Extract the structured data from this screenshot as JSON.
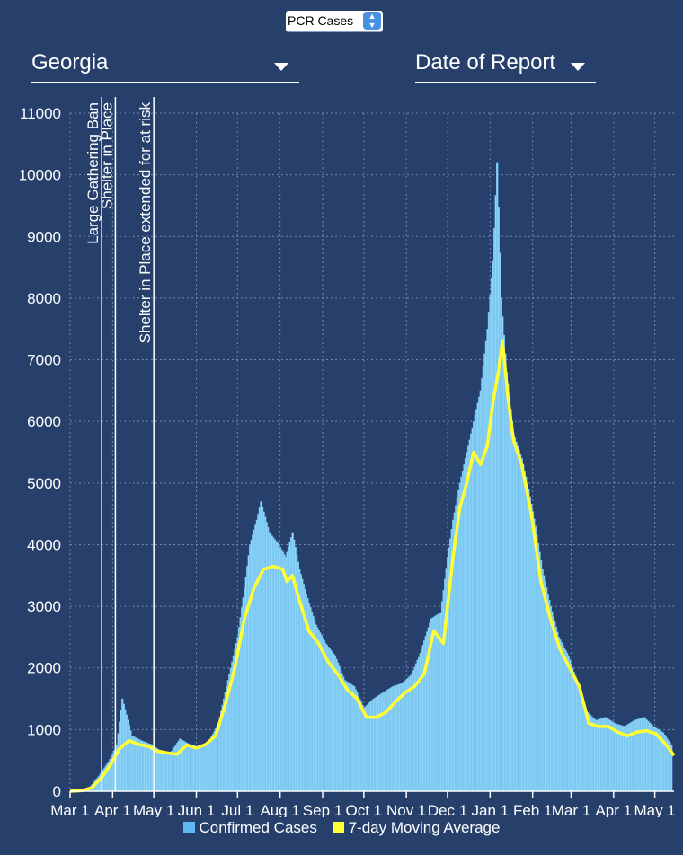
{
  "controls": {
    "metric_select": {
      "value": "PCR Cases"
    },
    "state_dropdown": {
      "value": "Georgia"
    },
    "date_dropdown": {
      "value": "Date of Report"
    }
  },
  "colors": {
    "background": "#27406b",
    "bars": "#8fd3f5",
    "bars_edge": "#5fb8ee",
    "moving_average": "#ffff33",
    "grid": "#6f86b0"
  },
  "chart_data": {
    "type": "bar",
    "title": "",
    "xlabel": "",
    "ylabel": "",
    "ylim": [
      0,
      11000
    ],
    "yticks": [
      0,
      1000,
      2000,
      3000,
      4000,
      5000,
      6000,
      7000,
      8000,
      9000,
      10000,
      11000
    ],
    "xlim": [
      "2020-03-01",
      "2021-05-15"
    ],
    "xticks": [
      {
        "date": "2020-03-01",
        "label": "Mar 1"
      },
      {
        "date": "2020-04-01",
        "label": "Apr 1"
      },
      {
        "date": "2020-05-01",
        "label": "May 1"
      },
      {
        "date": "2020-06-01",
        "label": "Jun 1"
      },
      {
        "date": "2020-07-01",
        "label": "Jul 1"
      },
      {
        "date": "2020-08-01",
        "label": "Aug 1"
      },
      {
        "date": "2020-09-01",
        "label": "Sep 1"
      },
      {
        "date": "2020-10-01",
        "label": "Oct 1"
      },
      {
        "date": "2020-11-01",
        "label": "Nov 1"
      },
      {
        "date": "2020-12-01",
        "label": "Dec 1"
      },
      {
        "date": "2021-01-01",
        "label": "Jan 1"
      },
      {
        "date": "2021-02-01",
        "label": "Feb 1"
      },
      {
        "date": "2021-03-01",
        "label": "Mar 1"
      },
      {
        "date": "2021-04-01",
        "label": "Apr 1"
      },
      {
        "date": "2021-05-01",
        "label": "May 1"
      }
    ],
    "grid": true,
    "legend_position": "bottom",
    "annotations": [
      {
        "date": "2020-03-24",
        "label": "Large Gathering Ban"
      },
      {
        "date": "2020-04-03",
        "label": "Shelter in Place"
      },
      {
        "date": "2020-05-01",
        "label": "Shelter in Place extended for at risk"
      }
    ],
    "series": [
      {
        "name": "Confirmed Cases",
        "kind": "bar",
        "points": [
          [
            "2020-03-01",
            0
          ],
          [
            "2020-03-08",
            10
          ],
          [
            "2020-03-15",
            60
          ],
          [
            "2020-03-22",
            250
          ],
          [
            "2020-03-29",
            480
          ],
          [
            "2020-04-04",
            750
          ],
          [
            "2020-04-08",
            1500
          ],
          [
            "2020-04-15",
            900
          ],
          [
            "2020-04-22",
            820
          ],
          [
            "2020-04-29",
            760
          ],
          [
            "2020-05-06",
            650
          ],
          [
            "2020-05-13",
            620
          ],
          [
            "2020-05-20",
            850
          ],
          [
            "2020-05-27",
            760
          ],
          [
            "2020-06-03",
            720
          ],
          [
            "2020-06-10",
            800
          ],
          [
            "2020-06-17",
            1100
          ],
          [
            "2020-06-24",
            1800
          ],
          [
            "2020-07-01",
            2500
          ],
          [
            "2020-07-06",
            3300
          ],
          [
            "2020-07-10",
            4000
          ],
          [
            "2020-07-15",
            4400
          ],
          [
            "2020-07-18",
            4700
          ],
          [
            "2020-07-24",
            4200
          ],
          [
            "2020-07-31",
            4000
          ],
          [
            "2020-08-05",
            3800
          ],
          [
            "2020-08-10",
            4200
          ],
          [
            "2020-08-15",
            3600
          ],
          [
            "2020-08-20",
            3200
          ],
          [
            "2020-08-27",
            2700
          ],
          [
            "2020-09-03",
            2400
          ],
          [
            "2020-09-10",
            2200
          ],
          [
            "2020-09-17",
            1800
          ],
          [
            "2020-09-24",
            1700
          ],
          [
            "2020-10-01",
            1350
          ],
          [
            "2020-10-08",
            1500
          ],
          [
            "2020-10-15",
            1600
          ],
          [
            "2020-10-22",
            1700
          ],
          [
            "2020-10-29",
            1750
          ],
          [
            "2020-11-05",
            1900
          ],
          [
            "2020-11-12",
            2300
          ],
          [
            "2020-11-19",
            2800
          ],
          [
            "2020-11-26",
            2900
          ],
          [
            "2020-12-01",
            3800
          ],
          [
            "2020-12-05",
            4400
          ],
          [
            "2020-12-10",
            5000
          ],
          [
            "2020-12-15",
            5500
          ],
          [
            "2020-12-20",
            6000
          ],
          [
            "2020-12-25",
            6500
          ],
          [
            "2020-12-30",
            7500
          ],
          [
            "2021-01-03",
            8600
          ],
          [
            "2021-01-06",
            10200
          ],
          [
            "2021-01-09",
            8000
          ],
          [
            "2021-01-13",
            6800
          ],
          [
            "2021-01-18",
            5800
          ],
          [
            "2021-01-24",
            5400
          ],
          [
            "2021-01-29",
            4900
          ],
          [
            "2021-02-03",
            4300
          ],
          [
            "2021-02-08",
            3600
          ],
          [
            "2021-02-14",
            3000
          ],
          [
            "2021-02-20",
            2500
          ],
          [
            "2021-02-27",
            2200
          ],
          [
            "2021-03-05",
            1800
          ],
          [
            "2021-03-12",
            1300
          ],
          [
            "2021-03-19",
            1150
          ],
          [
            "2021-03-26",
            1200
          ],
          [
            "2021-04-02",
            1100
          ],
          [
            "2021-04-09",
            1050
          ],
          [
            "2021-04-16",
            1150
          ],
          [
            "2021-04-23",
            1200
          ],
          [
            "2021-04-30",
            1050
          ],
          [
            "2021-05-07",
            950
          ],
          [
            "2021-05-13",
            750
          ]
        ]
      },
      {
        "name": "7-day Moving Average",
        "kind": "line",
        "points": [
          [
            "2020-03-01",
            0
          ],
          [
            "2020-03-10",
            10
          ],
          [
            "2020-03-17",
            60
          ],
          [
            "2020-03-24",
            220
          ],
          [
            "2020-03-31",
            450
          ],
          [
            "2020-04-06",
            690
          ],
          [
            "2020-04-13",
            820
          ],
          [
            "2020-04-20",
            760
          ],
          [
            "2020-04-27",
            730
          ],
          [
            "2020-05-04",
            650
          ],
          [
            "2020-05-11",
            620
          ],
          [
            "2020-05-18",
            600
          ],
          [
            "2020-05-25",
            750
          ],
          [
            "2020-06-01",
            700
          ],
          [
            "2020-06-08",
            760
          ],
          [
            "2020-06-15",
            900
          ],
          [
            "2020-06-22",
            1400
          ],
          [
            "2020-06-29",
            2000
          ],
          [
            "2020-07-06",
            2800
          ],
          [
            "2020-07-13",
            3300
          ],
          [
            "2020-07-20",
            3600
          ],
          [
            "2020-07-27",
            3650
          ],
          [
            "2020-08-03",
            3600
          ],
          [
            "2020-08-06",
            3400
          ],
          [
            "2020-08-10",
            3500
          ],
          [
            "2020-08-15",
            3100
          ],
          [
            "2020-08-22",
            2600
          ],
          [
            "2020-08-29",
            2400
          ],
          [
            "2020-09-05",
            2100
          ],
          [
            "2020-09-12",
            1900
          ],
          [
            "2020-09-19",
            1650
          ],
          [
            "2020-09-26",
            1500
          ],
          [
            "2020-10-03",
            1200
          ],
          [
            "2020-10-10",
            1200
          ],
          [
            "2020-10-17",
            1280
          ],
          [
            "2020-10-24",
            1450
          ],
          [
            "2020-10-31",
            1600
          ],
          [
            "2020-11-07",
            1700
          ],
          [
            "2020-11-14",
            1900
          ],
          [
            "2020-11-21",
            2600
          ],
          [
            "2020-11-28",
            2400
          ],
          [
            "2020-12-01",
            3000
          ],
          [
            "2020-12-05",
            3800
          ],
          [
            "2020-12-10",
            4600
          ],
          [
            "2020-12-15",
            5000
          ],
          [
            "2020-12-20",
            5500
          ],
          [
            "2020-12-25",
            5300
          ],
          [
            "2020-12-30",
            5600
          ],
          [
            "2021-01-03",
            6300
          ],
          [
            "2021-01-07",
            6800
          ],
          [
            "2021-01-10",
            7300
          ],
          [
            "2021-01-14",
            6400
          ],
          [
            "2021-01-18",
            5700
          ],
          [
            "2021-01-24",
            5300
          ],
          [
            "2021-01-31",
            4500
          ],
          [
            "2021-02-07",
            3400
          ],
          [
            "2021-02-14",
            2800
          ],
          [
            "2021-02-21",
            2300
          ],
          [
            "2021-02-28",
            2000
          ],
          [
            "2021-03-07",
            1700
          ],
          [
            "2021-03-14",
            1100
          ],
          [
            "2021-03-21",
            1050
          ],
          [
            "2021-03-28",
            1050
          ],
          [
            "2021-04-04",
            960
          ],
          [
            "2021-04-11",
            900
          ],
          [
            "2021-04-18",
            960
          ],
          [
            "2021-04-25",
            980
          ],
          [
            "2021-05-02",
            930
          ],
          [
            "2021-05-09",
            760
          ],
          [
            "2021-05-15",
            580
          ]
        ]
      }
    ]
  }
}
